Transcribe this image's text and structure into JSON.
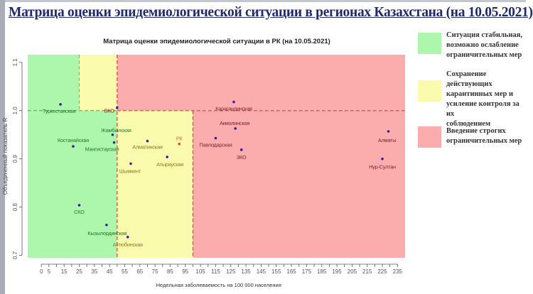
{
  "header": {
    "title": "Матрица оценки эпидемиологической ситуации в регионах Казахстана (на 10.05.2021)"
  },
  "legend": [
    {
      "label": "Ситуация стабильная,\nвозможно ослабление\nограничительных мер",
      "color": "#adf7ad"
    },
    {
      "label": "Сохранение\nдействующих\nкарантинных мер и\nусиление контроля за их\nсоблюдением",
      "color": "#fbfbad"
    },
    {
      "label": "Введение строгих\nограничительных мер",
      "color": "#fbadad"
    }
  ],
  "chart_data": {
    "type": "scatter",
    "title": "Матрица оценки эпидемиологической ситуации в РК (на 10.05.2021)",
    "xlabel": "Недельная заболеваемость на 100 000 населения",
    "ylabel": "Объединенный показатель R",
    "xlim": [
      -9,
      240
    ],
    "ylim": [
      0.695,
      1.116
    ],
    "xticks": [
      0,
      5,
      15,
      25,
      35,
      45,
      55,
      65,
      75,
      85,
      95,
      105,
      115,
      125,
      135,
      145,
      155,
      165,
      175,
      185,
      195,
      205,
      215,
      225,
      235
    ],
    "yticks": [
      0.7,
      0.8,
      0.9,
      1.0,
      1.1
    ],
    "grid": false,
    "thresholds": {
      "x": [
        25,
        50,
        100
      ],
      "y": 1.0
    },
    "zone_colors": {
      "green": "#adf7ad",
      "yellow": "#fbfbad",
      "red": "#fbadad",
      "line": "#e83a3a"
    },
    "points": [
      {
        "label": "Туркестанская",
        "x": 12.6,
        "y": 1.013
      },
      {
        "label": "ВКО",
        "x": 50,
        "y": 1.006
      },
      {
        "label": "Жамбылская",
        "x": 47,
        "y": 0.95
      },
      {
        "label": "Мангистауская",
        "x": 48,
        "y": 0.934
      },
      {
        "label": "Костанайская",
        "x": 21,
        "y": 0.926
      },
      {
        "label": "Алматинская",
        "x": 70,
        "y": 0.937
      },
      {
        "label": "РК",
        "x": 91,
        "y": 0.931
      },
      {
        "label": "Атырауская",
        "x": 83,
        "y": 0.904
      },
      {
        "label": "Шымкент",
        "x": 59,
        "y": 0.89
      },
      {
        "label": "СКО",
        "x": 25,
        "y": 0.804
      },
      {
        "label": "Кызылординская",
        "x": 43,
        "y": 0.763
      },
      {
        "label": "Актюбинская",
        "x": 57,
        "y": 0.738
      },
      {
        "label": "Карагандинская",
        "x": 127,
        "y": 1.018
      },
      {
        "label": "Акмолинская",
        "x": 128,
        "y": 0.963
      },
      {
        "label": "Павлодарская",
        "x": 115,
        "y": 0.943
      },
      {
        "label": "ЗКО",
        "x": 132,
        "y": 0.919
      },
      {
        "label": "Алматы",
        "x": 229,
        "y": 0.957
      },
      {
        "label": "Нур-Султан",
        "x": 225,
        "y": 0.9
      }
    ]
  }
}
